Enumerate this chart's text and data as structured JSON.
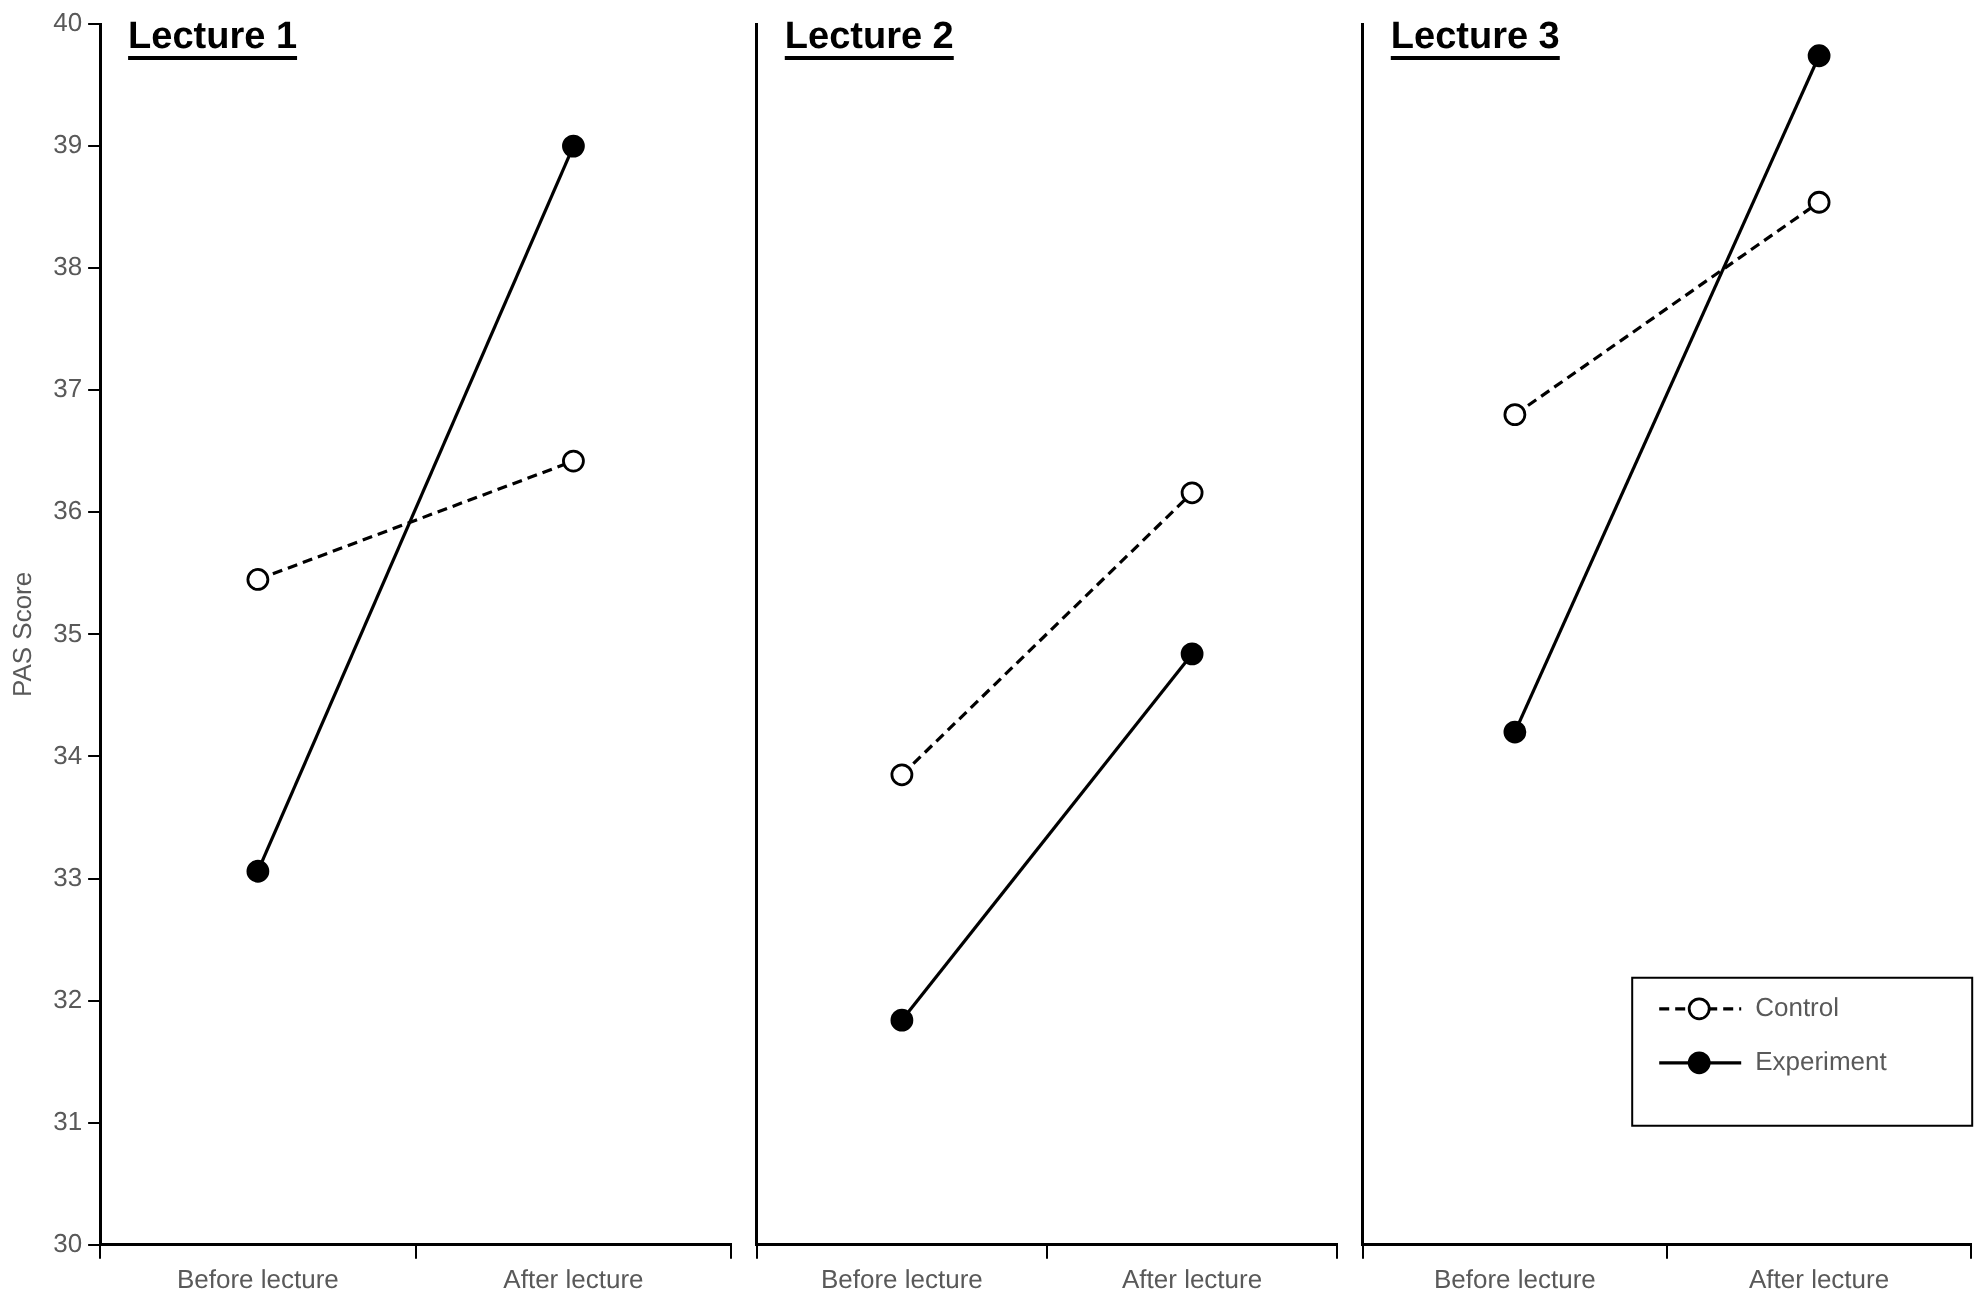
{
  "chart_data": [
    {
      "type": "line",
      "title": "Lecture 1",
      "ylabel": "PAS Score",
      "categories": [
        "Before lecture",
        "After lecture"
      ],
      "ylim": [
        30,
        40
      ],
      "yticks": [
        30,
        31,
        32,
        33,
        34,
        35,
        36,
        37,
        38,
        39,
        40
      ],
      "marker": "circle",
      "legend": false,
      "grid": false,
      "series": [
        {
          "color": "#000000",
          "line_style": "dashed",
          "values": [
            35.45,
            36.42
          ]
        },
        {
          "color": "#000000",
          "line_style": "solid",
          "values": [
            33.06,
            39.0
          ]
        }
      ]
    },
    {
      "type": "line",
      "title": "Lecture 2",
      "categories": [
        "Before lecture",
        "After lecture"
      ],
      "ylim": [
        30,
        40
      ],
      "yticks": [
        30,
        31,
        32,
        33,
        34,
        35,
        36,
        37,
        38,
        39,
        40
      ],
      "tick_labels": "x",
      "marker": "circle",
      "legend": false,
      "grid": false,
      "series": [
        {
          "color": "#000000",
          "line_style": "dashed",
          "values": [
            33.85,
            36.16
          ]
        },
        {
          "color": "#000000",
          "line_style": "solid",
          "values": [
            31.84,
            34.84
          ]
        }
      ]
    },
    {
      "type": "line",
      "title": "Lecture 3",
      "categories": [
        "Before lecture",
        "After lecture"
      ],
      "ylim": [
        30,
        40
      ],
      "yticks": [
        30,
        31,
        32,
        33,
        34,
        35,
        36,
        37,
        38,
        39,
        40
      ],
      "tick_labels": "x",
      "marker": "circle",
      "legend": "bottom right",
      "grid": false,
      "series": [
        {
          "name": "Control",
          "color": "#000000",
          "line_style": "dashed",
          "values": [
            36.8,
            38.54
          ]
        },
        {
          "name": "Experiment",
          "color": "#000000",
          "line_style": "solid",
          "values": [
            34.2,
            39.74
          ]
        }
      ]
    }
  ]
}
